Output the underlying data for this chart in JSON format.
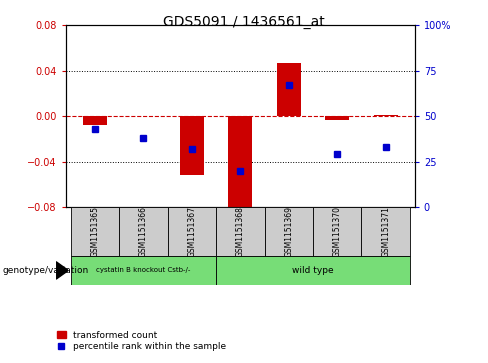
{
  "title": "GDS5091 / 1436561_at",
  "samples": [
    "GSM1151365",
    "GSM1151366",
    "GSM1151367",
    "GSM1151368",
    "GSM1151369",
    "GSM1151370",
    "GSM1151371"
  ],
  "bar_values": [
    -0.008,
    0.0,
    -0.052,
    -0.083,
    0.047,
    -0.003,
    0.001
  ],
  "percentile_values": [
    43,
    38,
    32,
    20,
    67,
    29,
    33
  ],
  "ylim_left": [
    -0.08,
    0.08
  ],
  "ylim_right": [
    0,
    100
  ],
  "yticks_left": [
    -0.08,
    -0.04,
    0.0,
    0.04,
    0.08
  ],
  "yticks_right": [
    0,
    25,
    50,
    75,
    100
  ],
  "ytick_labels_right": [
    "0",
    "25",
    "50",
    "75",
    "100%"
  ],
  "bar_color": "#cc0000",
  "dot_color": "#0000cc",
  "zero_line_color": "#cc0000",
  "sample_bg": "#cccccc",
  "group1_label": "cystatin B knockout Cstb-/-",
  "group2_label": "wild type",
  "group1_indices": [
    0,
    1,
    2
  ],
  "group2_indices": [
    3,
    4,
    5,
    6
  ],
  "group_color": "#77dd77",
  "legend_label1": "transformed count",
  "legend_label2": "percentile rank within the sample",
  "genotype_label": "genotype/variation"
}
